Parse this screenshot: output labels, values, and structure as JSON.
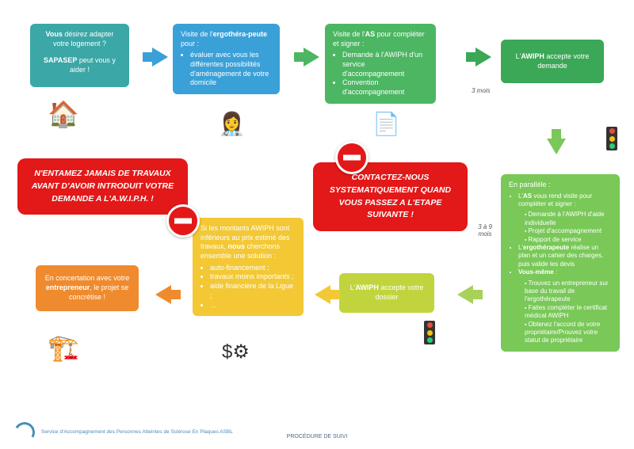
{
  "colors": {
    "teal": "#3ba7a7",
    "blue": "#3aa0d8",
    "green": "#4cb663",
    "darkgreen": "#3aa856",
    "lightgreen": "#79c858",
    "lime": "#a8d159",
    "yellowgreen": "#c1d43e",
    "yellow": "#f3c834",
    "orange": "#ef8b2e",
    "red": "#e31818"
  },
  "box1": {
    "l1": "<strong>Vous</strong> désirez adapter votre logement ?",
    "l2": "<strong>SAPASEP</strong> peut vous y aider !"
  },
  "box2": {
    "title": "Visite de l'<strong>ergothéra-peute</strong> pour :",
    "items": [
      "évaluer avec vous les différentes possibilités d'aménagement de votre domicile"
    ]
  },
  "box3": {
    "title": "Visite de l'<strong>AS</strong> pour compléter et signer :",
    "items": [
      "Demande à l'AWIPH d'un service d'accompagnement",
      "Convention d'accompagnement"
    ]
  },
  "box4": {
    "text": "L'<strong>AWIPH</strong> accepte votre demande"
  },
  "box5": {
    "title": "En parallèle :",
    "items": [
      {
        "t": "L'<strong>AS</strong> vous rend visite pour compléter et signer :",
        "sub": [
          "Demande à l'AWIPH d'aide individuelle",
          "Projet d'accompagnement",
          "Rapport de service"
        ]
      },
      {
        "t": "L'<strong>ergothérapeute</strong> réalise un plan et un cahier des charges, puis valide les devis"
      },
      {
        "t": "<strong>Vous-même</strong> :",
        "sub": [
          "Trouvez un entrepreneur sur base du travail de l'ergothérapeute",
          "Faites compléter le certificat médical AWIPH",
          "Obtenez l'accord de votre propriétaire/Prouvez votre statut de propriétaire"
        ]
      }
    ]
  },
  "box6": {
    "text": "L'<strong>AWIPH</strong> accepte votre dossier"
  },
  "box7": {
    "title": "Si les montants AWIPH sont inférieurs au prix estimé des travaux, <strong>nous</strong> cherchons ensemble une solution :",
    "items": [
      "auto-financement ;",
      "travaux moins importants ;",
      "aide financière de la Ligue ;",
      "…"
    ]
  },
  "box8": {
    "text": "En concertation avec votre <strong>entrepreneur</strong>, le projet se concrétise !"
  },
  "warn1": "N'ENTAMEZ JAMAIS DE TRAVAUX AVANT D'AVOIR INTRODUIT VOTRE DEMANDE A L'A.W.I.P.H. !",
  "warn2": "CONTACTEZ-NOUS SYSTEMATIQUEMENT QUAND VOUS PASSEZ A L'ETAPE SUIVANTE !",
  "d1": "3 mois",
  "d2": "3 à 9 mois",
  "footer": {
    "org": "Service d'Accompagnement des Personnes Atteintes de Sclérose En Plaques ASBL",
    "title": "PROCÉDURE DE SUIVI"
  }
}
